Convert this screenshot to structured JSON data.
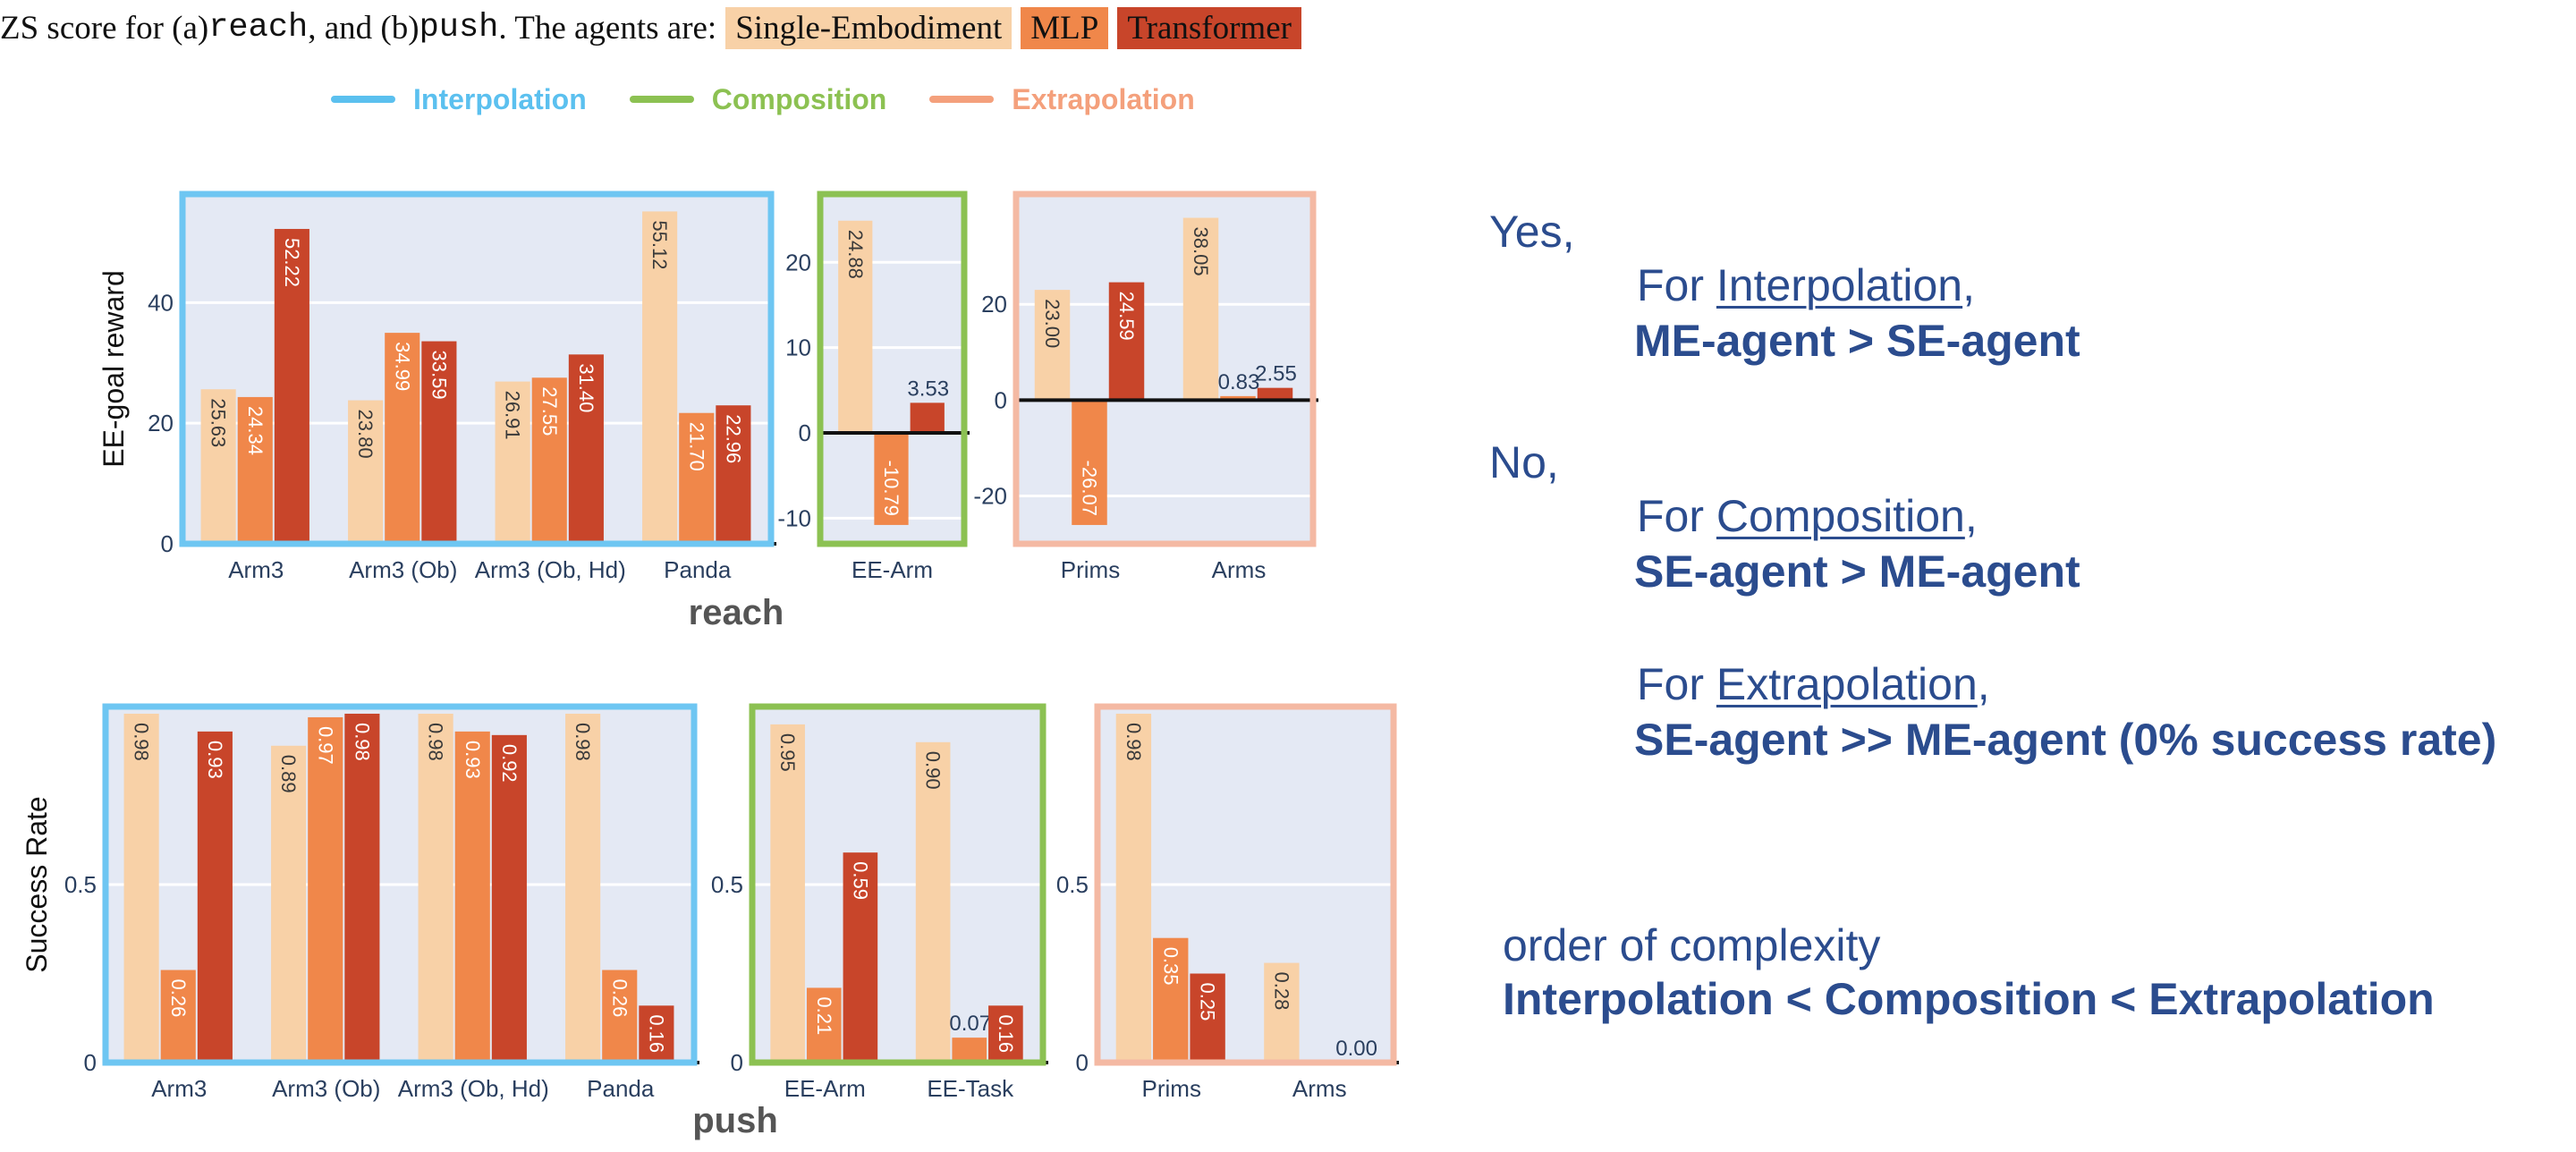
{
  "caption": {
    "prefix": "ZS score for (a) ",
    "code_a": "reach",
    "middle": ", and (b) ",
    "code_b": "push",
    "suffix": ". The agents are:",
    "agents": [
      {
        "label": "Single-Embodiment",
        "color": "#f8d1a7"
      },
      {
        "label": "MLP",
        "color": "#f0874a"
      },
      {
        "label": "Transformer",
        "color": "#c8452a"
      }
    ]
  },
  "legend": [
    {
      "label": "Interpolation",
      "color": "#5bc0ef"
    },
    {
      "label": "Composition",
      "color": "#8cc152"
    },
    {
      "label": "Extrapolation",
      "color": "#f4a07c"
    }
  ],
  "colors": {
    "single": "#f8d1a7",
    "mlp": "#f0874a",
    "transformer": "#c8452a",
    "plot_bg": "#e4e9f4",
    "interp_border": "#6ec6f2",
    "comp_border": "#8cc152",
    "extrap_border": "#f4b9a3",
    "axis_text": "#2a3f5f",
    "note_text": "#2b4c8e"
  },
  "chart_data": [
    {
      "type": "bar",
      "id": "reach-interpolation",
      "group": "Interpolation",
      "task": "reach",
      "ylabel": "EE-goal reward",
      "ylim": [
        0,
        58
      ],
      "yticks": [
        0,
        20,
        40
      ],
      "categories": [
        "Arm3",
        "Arm3 (Ob)",
        "Arm3 (Ob, Hd)",
        "Panda"
      ],
      "series": [
        {
          "name": "Single-Embodiment",
          "values": [
            25.63,
            23.8,
            26.91,
            55.12
          ],
          "labels": [
            "25.63",
            "23.80",
            "26.91",
            "55.12"
          ]
        },
        {
          "name": "MLP",
          "values": [
            24.34,
            34.99,
            27.55,
            21.7
          ],
          "labels": [
            "24.34",
            "34.99",
            "27.55",
            "21.70"
          ]
        },
        {
          "name": "Transformer",
          "values": [
            52.22,
            33.59,
            31.4,
            22.96
          ],
          "labels": [
            "52.22",
            "33.59",
            "31.40",
            "22.96"
          ]
        }
      ]
    },
    {
      "type": "bar",
      "id": "reach-composition",
      "group": "Composition",
      "task": "reach",
      "ylim": [
        -13,
        28
      ],
      "yticks": [
        -10,
        0,
        10,
        20
      ],
      "categories": [
        "EE-Arm"
      ],
      "series": [
        {
          "name": "Single-Embodiment",
          "values": [
            24.88
          ],
          "labels": [
            "24.88"
          ]
        },
        {
          "name": "MLP",
          "values": [
            -10.79
          ],
          "labels": [
            "-10.79"
          ]
        },
        {
          "name": "Transformer",
          "values": [
            3.53
          ],
          "labels": [
            "3.53"
          ]
        }
      ]
    },
    {
      "type": "bar",
      "id": "reach-extrapolation",
      "group": "Extrapolation",
      "task": "reach",
      "ylim": [
        -30,
        43
      ],
      "yticks": [
        -20,
        0,
        20
      ],
      "categories": [
        "Prims",
        "Arms"
      ],
      "series": [
        {
          "name": "Single-Embodiment",
          "values": [
            23.0,
            38.05
          ],
          "labels": [
            "23.00",
            "38.05"
          ]
        },
        {
          "name": "MLP",
          "values": [
            -26.07,
            0.83
          ],
          "labels": [
            "-26.07",
            "0.83"
          ]
        },
        {
          "name": "Transformer",
          "values": [
            24.59,
            2.55
          ],
          "labels": [
            "24.59",
            "2.55"
          ]
        }
      ]
    },
    {
      "type": "bar",
      "id": "push-interpolation",
      "group": "Interpolation",
      "task": "push",
      "ylabel": "Success Rate",
      "ylim": [
        0,
        1.0
      ],
      "yticks": [
        0,
        0.5
      ],
      "categories": [
        "Arm3",
        "Arm3 (Ob)",
        "Arm3 (Ob, Hd)",
        "Panda"
      ],
      "series": [
        {
          "name": "Single-Embodiment",
          "values": [
            0.98,
            0.89,
            0.98,
            0.98
          ],
          "labels": [
            "0.98",
            "0.89",
            "0.98",
            "0.98"
          ]
        },
        {
          "name": "MLP",
          "values": [
            0.26,
            0.97,
            0.93,
            0.26
          ],
          "labels": [
            "0.26",
            "0.97",
            "0.93",
            "0.26"
          ]
        },
        {
          "name": "Transformer",
          "values": [
            0.93,
            0.98,
            0.92,
            0.16
          ],
          "labels": [
            "0.93",
            "0.98",
            "0.92",
            "0.16"
          ]
        }
      ]
    },
    {
      "type": "bar",
      "id": "push-composition",
      "group": "Composition",
      "task": "push",
      "ylim": [
        0,
        1.0
      ],
      "yticks": [
        0,
        0.5
      ],
      "categories": [
        "EE-Arm",
        "EE-Task"
      ],
      "series": [
        {
          "name": "Single-Embodiment",
          "values": [
            0.95,
            0.9
          ],
          "labels": [
            "0.95",
            "0.90"
          ]
        },
        {
          "name": "MLP",
          "values": [
            0.21,
            0.07
          ],
          "labels": [
            "0.21",
            "0.07"
          ]
        },
        {
          "name": "Transformer",
          "values": [
            0.59,
            0.16
          ],
          "labels": [
            "0.59",
            "0.16"
          ]
        }
      ]
    },
    {
      "type": "bar",
      "id": "push-extrapolation",
      "group": "Extrapolation",
      "task": "push",
      "ylim": [
        0,
        1.0
      ],
      "yticks": [
        0,
        0.5
      ],
      "categories": [
        "Prims",
        "Arms"
      ],
      "series": [
        {
          "name": "Single-Embodiment",
          "values": [
            0.98,
            0.28
          ],
          "labels": [
            "0.98",
            "0.28"
          ]
        },
        {
          "name": "MLP",
          "values": [
            0.35,
            0.0
          ],
          "labels": [
            "0.35",
            ""
          ]
        },
        {
          "name": "Transformer",
          "values": [
            0.25,
            0.0
          ],
          "labels": [
            "0.25",
            "0.00"
          ]
        }
      ]
    }
  ],
  "row_titles": {
    "reach": "reach",
    "push": "push"
  },
  "notes": {
    "yes": "Yes,",
    "interp_for": "For ",
    "interp_term": "Interpolation",
    "interp_comma": ",",
    "interp_claim": "ME-agent > SE-agent",
    "no": "No,",
    "comp_for": "For ",
    "comp_term": "Composition",
    "comp_comma": ",",
    "comp_claim": "SE-agent > ME-agent",
    "extrap_for": "For ",
    "extrap_term": "Extrapolation",
    "extrap_comma": ",",
    "extrap_claim": "SE-agent  >> ME-agent (0% success rate)",
    "complexity_title": "order of complexity",
    "complexity_order": "Interpolation < Composition < Extrapolation"
  }
}
